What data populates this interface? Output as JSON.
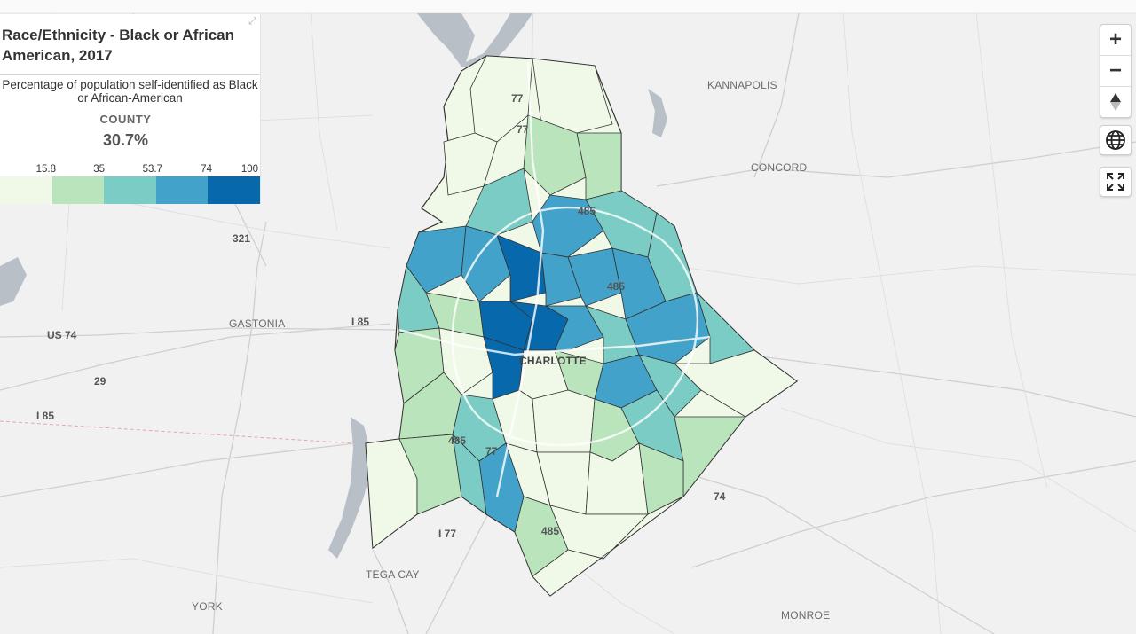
{
  "legend": {
    "title": "Race/Ethnicity - Black or African American, 2017",
    "description": "Percentage of population self-identified as Black or African-American",
    "county_label": "COUNTY",
    "county_value": "30.7%",
    "breaks": [
      "15.8",
      "35",
      "53.7",
      "74",
      "100"
    ],
    "colors": [
      "#f0f9e8",
      "#bae4bc",
      "#7bccc4",
      "#43a2ca",
      "#0868ac"
    ],
    "expand_icon": "expand-icon"
  },
  "map": {
    "places": [
      {
        "name": "KANNAPOLIS"
      },
      {
        "name": "CONCORD"
      },
      {
        "name": "GASTONIA"
      },
      {
        "name": "CHARLOTTE"
      },
      {
        "name": "TEGA CAY"
      },
      {
        "name": "YORK"
      },
      {
        "name": "MONROE"
      }
    ],
    "roads": [
      "77",
      "77",
      "485",
      "485",
      "321",
      "I 85",
      "US 74",
      "29",
      "I 85",
      "485",
      "77",
      "I 77",
      "485",
      "74"
    ]
  },
  "controls": {
    "zoom_in": "+",
    "zoom_out": "−",
    "compass_icon": "compass-icon",
    "globe_icon": "globe-icon",
    "fullscreen_icon": "fullscreen-icon"
  }
}
